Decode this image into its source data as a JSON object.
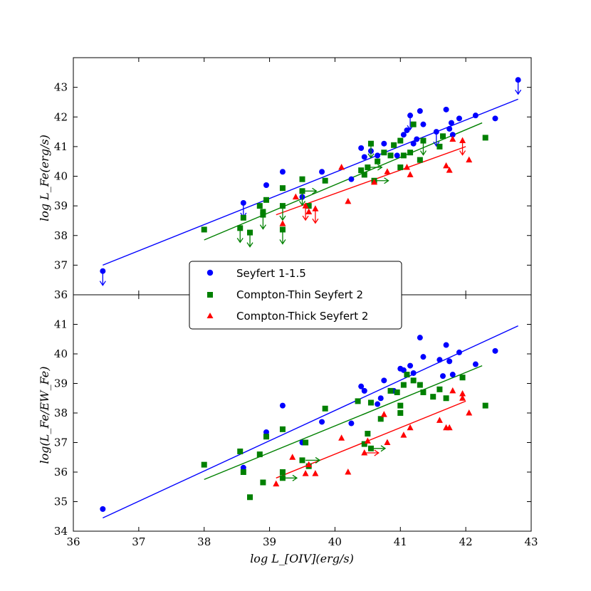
{
  "colors": {
    "seyfert1": "#0000ff",
    "thin": "#008000",
    "thick": "#ff0000"
  },
  "chart_data": [
    {
      "type": "scatter",
      "panel": "top",
      "xlim": [
        36,
        43
      ],
      "ylim": [
        36,
        44
      ],
      "yticks": [
        36,
        37,
        38,
        39,
        40,
        41,
        42,
        43
      ],
      "ytick_labels": [
        "36",
        "37",
        "38",
        "39",
        "40",
        "41",
        "42",
        "43"
      ],
      "ylabel": "log L_Fe(erg/s)",
      "series": [
        {
          "name": "Seyfert 1-1.5",
          "marker": "circle",
          "points": [
            [
              36.45,
              36.8
            ],
            [
              38.6,
              39.1
            ],
            [
              38.95,
              39.7
            ],
            [
              39.2,
              40.15
            ],
            [
              39.5,
              39.3
            ],
            [
              39.8,
              40.15
            ],
            [
              40.25,
              39.9
            ],
            [
              40.4,
              40.95
            ],
            [
              40.45,
              40.65
            ],
            [
              40.55,
              40.85
            ],
            [
              40.65,
              40.7
            ],
            [
              40.75,
              41.1
            ],
            [
              40.95,
              40.7
            ],
            [
              41.05,
              41.4
            ],
            [
              41.1,
              41.55
            ],
            [
              41.15,
              42.05
            ],
            [
              41.2,
              41.1
            ],
            [
              41.25,
              41.25
            ],
            [
              41.3,
              42.2
            ],
            [
              41.35,
              41.75
            ],
            [
              41.55,
              41.5
            ],
            [
              41.7,
              42.25
            ],
            [
              41.75,
              41.6
            ],
            [
              41.78,
              41.8
            ],
            [
              41.8,
              41.4
            ],
            [
              41.9,
              41.95
            ],
            [
              42.15,
              42.05
            ],
            [
              42.45,
              41.95
            ],
            [
              42.8,
              43.25
            ]
          ],
          "upper_limits": [
            [
              36.45,
              36.8
            ],
            [
              38.6,
              39.1
            ],
            [
              42.8,
              43.25
            ],
            [
              41.15,
              42.05
            ],
            [
              41.55,
              41.5
            ]
          ]
        },
        {
          "name": "Compton-Thin Seyfert 2",
          "marker": "square",
          "points": [
            [
              38.0,
              38.2
            ],
            [
              38.55,
              38.25
            ],
            [
              38.6,
              38.6
            ],
            [
              38.7,
              38.1
            ],
            [
              38.85,
              39.0
            ],
            [
              38.9,
              38.7
            ],
            [
              38.9,
              38.8
            ],
            [
              38.95,
              39.2
            ],
            [
              39.2,
              38.2
            ],
            [
              39.2,
              39.0
            ],
            [
              39.2,
              39.6
            ],
            [
              39.5,
              39.5
            ],
            [
              39.5,
              39.9
            ],
            [
              39.6,
              39.0
            ],
            [
              39.85,
              39.85
            ],
            [
              40.4,
              40.2
            ],
            [
              40.45,
              40.05
            ],
            [
              40.5,
              40.3
            ],
            [
              40.55,
              41.1
            ],
            [
              40.6,
              39.85
            ],
            [
              40.65,
              40.5
            ],
            [
              40.75,
              40.8
            ],
            [
              40.85,
              40.7
            ],
            [
              40.9,
              41.05
            ],
            [
              41.0,
              40.3
            ],
            [
              41.0,
              41.2
            ],
            [
              41.05,
              40.7
            ],
            [
              41.15,
              40.8
            ],
            [
              41.2,
              41.75
            ],
            [
              41.3,
              40.55
            ],
            [
              41.35,
              41.2
            ],
            [
              41.6,
              41.0
            ],
            [
              41.65,
              41.35
            ],
            [
              42.3,
              41.3
            ]
          ],
          "upper_limits": [
            [
              38.55,
              38.25
            ],
            [
              38.7,
              38.1
            ],
            [
              38.9,
              38.7
            ],
            [
              39.2,
              38.2
            ],
            [
              39.2,
              39.0
            ],
            [
              39.5,
              39.5
            ],
            [
              40.55,
              41.1
            ],
            [
              41.35,
              41.2
            ]
          ],
          "lower_limits_x": [
            [
              39.5,
              39.5
            ],
            [
              40.6,
              39.85
            ],
            [
              40.5,
              40.3
            ]
          ]
        },
        {
          "name": "Compton-Thick Seyfert 2",
          "marker": "triangle",
          "points": [
            [
              39.2,
              38.4
            ],
            [
              39.4,
              39.3
            ],
            [
              39.55,
              39.0
            ],
            [
              39.6,
              38.8
            ],
            [
              39.7,
              38.9
            ],
            [
              40.1,
              40.3
            ],
            [
              40.2,
              39.15
            ],
            [
              40.6,
              39.8
            ],
            [
              40.8,
              40.15
            ],
            [
              41.1,
              40.3
            ],
            [
              41.15,
              40.05
            ],
            [
              41.7,
              40.35
            ],
            [
              41.75,
              40.2
            ],
            [
              41.8,
              41.25
            ],
            [
              41.95,
              41.2
            ],
            [
              42.05,
              40.55
            ]
          ],
          "upper_limits": [
            [
              39.55,
              39.0
            ],
            [
              39.7,
              38.9
            ],
            [
              41.95,
              41.2
            ]
          ]
        }
      ],
      "fits": [
        {
          "series": "Seyfert 1-1.5",
          "x": [
            36.45,
            42.8
          ],
          "y": [
            37.0,
            42.6
          ]
        },
        {
          "series": "Compton-Thin Seyfert 2",
          "x": [
            38.0,
            42.25
          ],
          "y": [
            37.85,
            41.8
          ]
        },
        {
          "series": "Compton-Thick Seyfert 2",
          "x": [
            39.1,
            42.0
          ],
          "y": [
            38.7,
            41.0
          ]
        }
      ]
    },
    {
      "type": "scatter",
      "panel": "bottom",
      "xlim": [
        36,
        43
      ],
      "ylim": [
        34,
        42
      ],
      "xticks": [
        36,
        37,
        38,
        39,
        40,
        41,
        42,
        43
      ],
      "xtick_labels": [
        "36",
        "37",
        "38",
        "39",
        "40",
        "41",
        "42",
        "43"
      ],
      "yticks": [
        34,
        35,
        36,
        37,
        38,
        39,
        40,
        41
      ],
      "ytick_labels": [
        "34",
        "35",
        "36",
        "37",
        "38",
        "39",
        "40",
        "41"
      ],
      "xlabel": "log L_[OIV](erg/s)",
      "ylabel": "log(L_Fe/EW_Fe)",
      "series": [
        {
          "name": "Seyfert 1-1.5",
          "marker": "circle",
          "points": [
            [
              36.45,
              34.75
            ],
            [
              38.6,
              36.15
            ],
            [
              38.95,
              37.35
            ],
            [
              39.2,
              38.25
            ],
            [
              39.5,
              37.0
            ],
            [
              39.8,
              37.7
            ],
            [
              40.25,
              37.65
            ],
            [
              40.4,
              38.9
            ],
            [
              40.45,
              38.75
            ],
            [
              40.65,
              38.3
            ],
            [
              40.7,
              38.5
            ],
            [
              40.75,
              39.1
            ],
            [
              40.9,
              38.75
            ],
            [
              41.0,
              39.5
            ],
            [
              41.05,
              39.45
            ],
            [
              41.15,
              39.6
            ],
            [
              41.2,
              39.35
            ],
            [
              41.3,
              40.55
            ],
            [
              41.35,
              39.9
            ],
            [
              41.6,
              39.8
            ],
            [
              41.65,
              39.25
            ],
            [
              41.7,
              40.3
            ],
            [
              41.75,
              39.75
            ],
            [
              41.8,
              39.3
            ],
            [
              41.9,
              40.05
            ],
            [
              42.15,
              39.65
            ],
            [
              42.45,
              40.1
            ]
          ],
          "upper_limits": []
        },
        {
          "name": "Compton-Thin Seyfert 2",
          "marker": "square",
          "points": [
            [
              38.0,
              36.25
            ],
            [
              38.55,
              36.7
            ],
            [
              38.6,
              36.0
            ],
            [
              38.7,
              35.15
            ],
            [
              38.85,
              36.6
            ],
            [
              38.9,
              35.65
            ],
            [
              38.95,
              37.2
            ],
            [
              39.2,
              35.8
            ],
            [
              39.2,
              36.0
            ],
            [
              39.2,
              37.45
            ],
            [
              39.5,
              36.4
            ],
            [
              39.55,
              37.0
            ],
            [
              39.6,
              36.2
            ],
            [
              39.85,
              38.15
            ],
            [
              40.35,
              38.4
            ],
            [
              40.45,
              36.95
            ],
            [
              40.5,
              37.3
            ],
            [
              40.55,
              38.35
            ],
            [
              40.55,
              36.8
            ],
            [
              40.7,
              37.8
            ],
            [
              40.85,
              38.75
            ],
            [
              40.95,
              38.7
            ],
            [
              41.0,
              38.25
            ],
            [
              41.0,
              38.0
            ],
            [
              41.05,
              38.95
            ],
            [
              41.1,
              39.3
            ],
            [
              41.2,
              39.1
            ],
            [
              41.3,
              38.95
            ],
            [
              41.35,
              38.7
            ],
            [
              41.5,
              38.55
            ],
            [
              41.6,
              38.8
            ],
            [
              41.7,
              38.5
            ],
            [
              41.95,
              39.2
            ],
            [
              42.3,
              38.25
            ]
          ],
          "lower_limits_x": [
            [
              39.2,
              35.8
            ],
            [
              40.55,
              36.8
            ],
            [
              39.55,
              36.4
            ]
          ]
        },
        {
          "name": "Compton-Thick Seyfert 2",
          "marker": "triangle",
          "points": [
            [
              39.1,
              35.6
            ],
            [
              39.35,
              36.5
            ],
            [
              39.55,
              35.95
            ],
            [
              39.6,
              36.25
            ],
            [
              39.7,
              35.95
            ],
            [
              40.1,
              37.15
            ],
            [
              40.2,
              36.0
            ],
            [
              40.45,
              36.65
            ],
            [
              40.5,
              37.05
            ],
            [
              40.75,
              37.95
            ],
            [
              40.8,
              37.0
            ],
            [
              41.05,
              37.25
            ],
            [
              41.15,
              37.5
            ],
            [
              41.6,
              37.75
            ],
            [
              41.7,
              37.5
            ],
            [
              41.75,
              37.5
            ],
            [
              41.8,
              38.75
            ],
            [
              41.95,
              38.5
            ],
            [
              41.95,
              38.65
            ],
            [
              42.05,
              38.0
            ]
          ],
          "lower_limits_x": [
            [
              40.45,
              36.65
            ]
          ]
        }
      ],
      "fits": [
        {
          "series": "Seyfert 1-1.5",
          "x": [
            36.45,
            42.8
          ],
          "y": [
            34.45,
            40.95
          ]
        },
        {
          "series": "Compton-Thin Seyfert 2",
          "x": [
            38.0,
            42.25
          ],
          "y": [
            35.75,
            39.6
          ]
        },
        {
          "series": "Compton-Thick Seyfert 2",
          "x": [
            39.1,
            42.0
          ],
          "y": [
            35.8,
            38.4
          ]
        }
      ]
    }
  ],
  "legend": {
    "position": "center-left",
    "entries": [
      "Seyfert 1-1.5",
      "Compton-Thin Seyfert 2",
      "Compton-Thick Seyfert 2"
    ]
  },
  "labels": {
    "top_ylabel": "log L_Fe(erg/s)",
    "bottom_ylabel": "log(L_Fe/EW_Fe)",
    "xlabel": "log L_[OIV](erg/s)"
  }
}
